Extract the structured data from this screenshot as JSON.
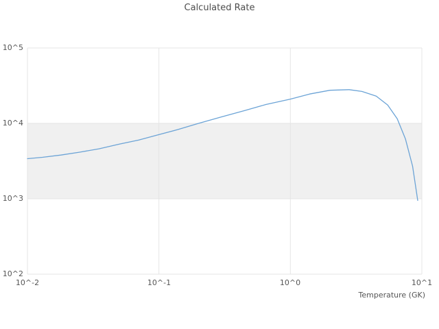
{
  "chart_data": {
    "type": "line",
    "title": "Calculated Rate",
    "xlabel": "Temperature (GK)",
    "ylabel": "",
    "x_scale": "log",
    "y_scale": "log",
    "xlim": [
      0.01,
      10
    ],
    "ylim": [
      100,
      100000
    ],
    "x_ticks": [
      0.01,
      0.1,
      1,
      10
    ],
    "x_tick_labels": [
      "10^-2",
      "10^-1",
      "10^0",
      "10^1"
    ],
    "y_ticks": [
      100,
      1000,
      10000,
      100000
    ],
    "y_tick_labels": [
      "10^2",
      "10^3",
      "10^4",
      "10^5"
    ],
    "grid": true,
    "grid_color": "#e4e4e4",
    "band": {
      "y_from": 1000,
      "y_to": 10000,
      "color": "#f0f0f0"
    },
    "line_color": "#6ba3d6",
    "legend": "none",
    "series": [
      {
        "name": "Calculated Rate",
        "x": [
          0.01,
          0.013,
          0.018,
          0.025,
          0.035,
          0.05,
          0.07,
          0.1,
          0.14,
          0.2,
          0.3,
          0.45,
          0.65,
          1.0,
          1.4,
          2.0,
          2.8,
          3.5,
          4.5,
          5.5,
          6.5,
          7.5,
          8.5,
          9.3
        ],
        "y": [
          3400,
          3550,
          3800,
          4150,
          4600,
          5300,
          6000,
          7100,
          8300,
          10000,
          12200,
          14800,
          17800,
          21000,
          24500,
          27500,
          28000,
          26500,
          23000,
          17500,
          11500,
          6200,
          2700,
          950
        ]
      }
    ]
  }
}
